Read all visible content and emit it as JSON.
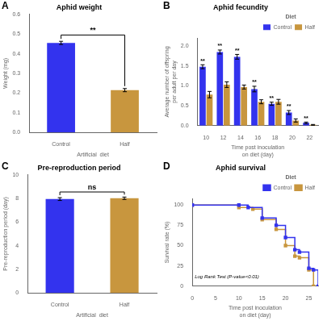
{
  "chart_data": [
    {
      "type": "bar",
      "panel_label": "A",
      "title": "Aphid weight",
      "xlabel": "Artificial  diet",
      "ylabel": "Weight (mg)",
      "categories": [
        "Control",
        "Half"
      ],
      "values": [
        0.455,
        0.215
      ],
      "errors": [
        0.008,
        0.008
      ],
      "colors": [
        "#3333EE",
        "#C8963E"
      ],
      "ylim": [
        0,
        0.6
      ],
      "yticks": [
        {
          "value": 0.0,
          "label": "0.0"
        },
        0.1,
        0.2,
        0.3,
        0.4,
        0.5,
        0.6
      ],
      "bracket": {
        "text": "**",
        "y": 0.495
      },
      "grid": false
    },
    {
      "type": "bar",
      "panel_label": "B",
      "title": "Aphid fecundity",
      "xlabel": "Time post inoculation on diet (day)",
      "ylabel": "Average number of offspring per adult per day",
      "categories": [
        "10",
        "12",
        "14",
        "16",
        "18",
        "20",
        "22"
      ],
      "series": [
        {
          "name": "Control",
          "color": "#3333EE",
          "values": [
            1.48,
            1.85,
            1.73,
            0.92,
            0.55,
            0.33,
            0.07
          ],
          "errors": [
            0.05,
            0.05,
            0.06,
            0.07,
            0.04,
            0.05,
            0.02
          ],
          "annotations": [
            "**",
            "**",
            "**",
            "**",
            "**",
            "**",
            "**"
          ]
        },
        {
          "name": "Half",
          "color": "#C8963E",
          "values": [
            0.78,
            1.03,
            0.97,
            0.6,
            0.6,
            0.13,
            0.02
          ],
          "errors": [
            0.08,
            0.07,
            0.05,
            0.05,
            0.06,
            0.04,
            0.01
          ]
        }
      ],
      "ylim": [
        0,
        2.2
      ],
      "yticks": [
        {
          "value": 0.0,
          "label": "0.0"
        },
        0.5,
        {
          "value": 1.0,
          "label": "1.0"
        },
        1.5,
        {
          "value": 2.0,
          "label": "2.0"
        }
      ],
      "legend": "upper right",
      "legend_title": "Diet",
      "grid": false
    },
    {
      "type": "bar",
      "panel_label": "C",
      "title": "Pre-reproduction period",
      "xlabel": "Artificial  diet",
      "ylabel": "Pre-reproduction period (day)",
      "categories": [
        "Control",
        "Half"
      ],
      "values": [
        7.95,
        8.02
      ],
      "errors": [
        0.12,
        0.1
      ],
      "colors": [
        "#3333EE",
        "#C8963E"
      ],
      "ylim": [
        0,
        10
      ],
      "yticks": [
        0,
        2,
        4,
        6,
        8,
        10
      ],
      "bracket": {
        "text": "ns",
        "y": 8.55
      },
      "grid": false
    },
    {
      "type": "line",
      "panel_label": "D",
      "title": "Aphid survival",
      "xlabel": "Time post inoculation on diet (day)",
      "ylabel": "Survival rate (%)",
      "series": [
        {
          "name": "Control",
          "color": "#3333EE",
          "marker": "square",
          "line_style": "step",
          "x": [
            0,
            10,
            12,
            15,
            18,
            20,
            22,
            23,
            25,
            26,
            27
          ],
          "values": [
            100,
            100,
            97,
            84,
            75,
            60,
            45,
            42,
            22,
            20,
            0
          ]
        },
        {
          "name": "Half",
          "color": "#C8963E",
          "marker": "square",
          "line_style": "step",
          "x": [
            0,
            10,
            13,
            15,
            18,
            20,
            22,
            23,
            25,
            26
          ],
          "values": [
            100,
            97,
            95,
            82,
            70,
            50,
            37,
            35,
            20,
            0
          ]
        }
      ],
      "xlim": [
        0,
        27
      ],
      "xticks": [
        0,
        5,
        10,
        15,
        20,
        25
      ],
      "ylim": [
        0,
        108
      ],
      "yticks": [
        0,
        25,
        50,
        75,
        100
      ],
      "annotation": "Log Rank Test (P-value<0.01)",
      "legend": "upper right",
      "legend_title": "Diet",
      "grid": false
    }
  ]
}
